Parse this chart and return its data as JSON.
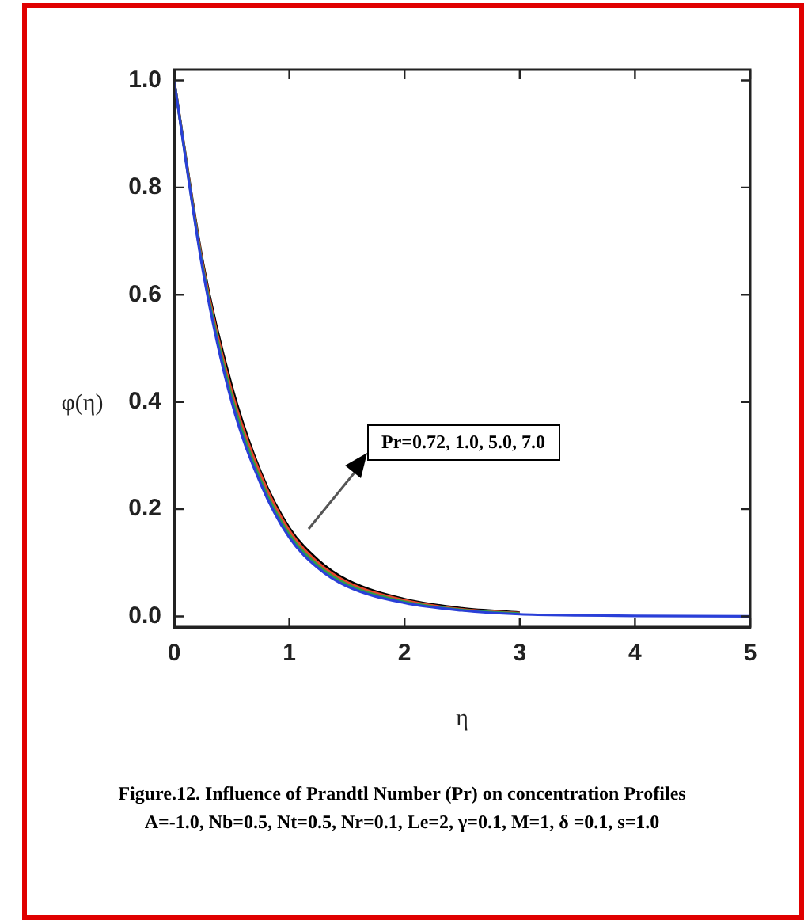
{
  "chart_data": {
    "type": "line",
    "title": "Figure.12. Influence  of Prandtl Number (Pr) on concentration  Profiles",
    "subtitle": "A=-1.0, Nb=0.5, Nt=0.5, Nr=0.1, Le=2, γ=0.1, M=1, δ =0.1, s=1.0",
    "xlabel": "η",
    "ylabel": "φ(η)",
    "annotations": [
      "Pr=0.72, 1.0, 5.0, 7.0"
    ],
    "x": [
      0,
      0.25,
      0.5,
      0.75,
      1,
      1.25,
      1.5,
      2,
      2.5,
      3,
      3.5,
      4,
      5
    ],
    "series": [
      {
        "color": "#000000",
        "values": [
          1,
          0.66,
          0.43,
          0.27,
          0.165,
          0.105,
          0.068,
          0.032,
          0.015,
          0.007,
          null,
          null,
          null
        ]
      },
      {
        "color": "#e8452c",
        "values": [
          1,
          0.655,
          0.42,
          0.265,
          0.16,
          0.1,
          0.064,
          0.03,
          0.013,
          0.006,
          null,
          null,
          null
        ]
      },
      {
        "color": "#2e9e4a",
        "values": [
          1,
          0.65,
          0.41,
          0.255,
          0.153,
          0.095,
          0.06,
          0.027,
          0.012,
          0.005,
          null,
          null,
          null
        ]
      },
      {
        "color": "#2a3fd8",
        "values": [
          1,
          0.645,
          0.4,
          0.248,
          0.147,
          0.09,
          0.056,
          0.025,
          0.011,
          0.004,
          0.002,
          0.001,
          0
        ]
      }
    ],
    "xlim": [
      0,
      5
    ],
    "xticks": [
      0,
      1,
      2,
      3,
      4,
      5
    ],
    "ylim": [
      -0.02,
      1.02
    ],
    "yticks": [
      {
        "value": 0,
        "label": "0.0"
      },
      {
        "value": 0.2,
        "label": "0.2"
      },
      {
        "value": 0.4,
        "label": "0.4"
      },
      {
        "value": 0.6,
        "label": "0.6"
      },
      {
        "value": 0.8,
        "label": "0.8"
      },
      {
        "value": 1,
        "label": "1.0"
      }
    ],
    "grid": false,
    "legend": false,
    "marker": "none",
    "line_style": "solid"
  }
}
